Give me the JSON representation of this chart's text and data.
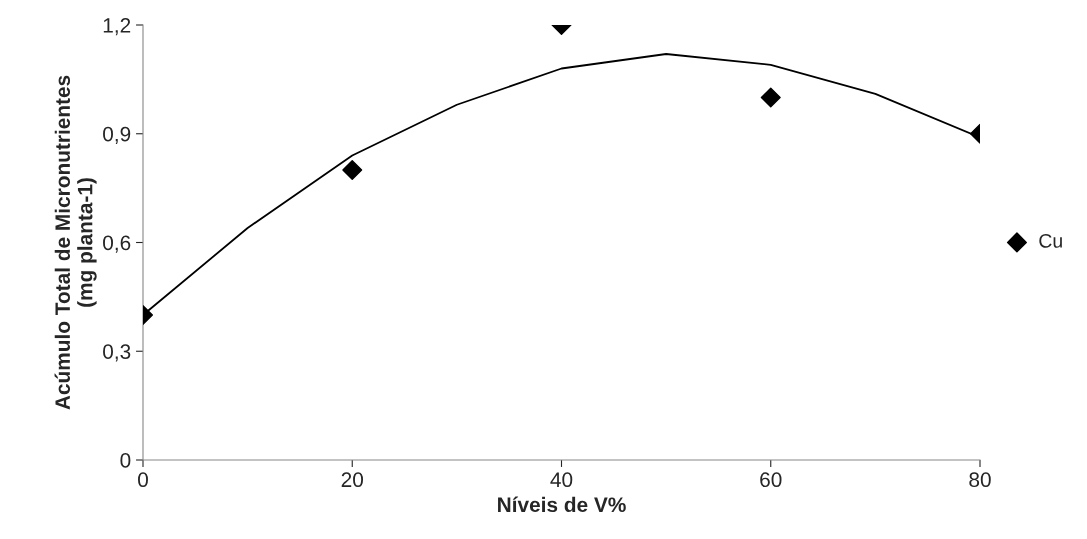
{
  "chart_data": {
    "type": "scatter",
    "xlabel": "Níveis de V%",
    "ylabel": "Acúmulo Total de Micronutrientes\n(mg planta-1)",
    "xlim": [
      0,
      80
    ],
    "xticks": [
      0,
      20,
      40,
      60,
      80
    ],
    "ylim": [
      0,
      1.2
    ],
    "yticks": [
      0,
      {
        "value": 0.3,
        "label": "0,3"
      },
      {
        "value": 0.6,
        "label": "0,6"
      },
      {
        "value": 0.9,
        "label": "0,9"
      },
      {
        "value": 1.2,
        "label": "1,2"
      }
    ],
    "grid": false,
    "legend": "right",
    "marker": "diamond",
    "series": [
      {
        "name": "Cu",
        "color": "#000000",
        "x": [
          0,
          20,
          40,
          60,
          80
        ],
        "values": [
          0.4,
          0.8,
          1.2,
          1.0,
          0.9
        ]
      },
      {
        "type": "line",
        "color": "#000000",
        "line_style": "solid",
        "marker": "none",
        "x": [
          0,
          10,
          20,
          30,
          40,
          50,
          60,
          70,
          80
        ],
        "values": [
          0.4,
          0.64,
          0.84,
          0.98,
          1.08,
          1.12,
          1.09,
          1.01,
          0.89
        ]
      }
    ]
  }
}
